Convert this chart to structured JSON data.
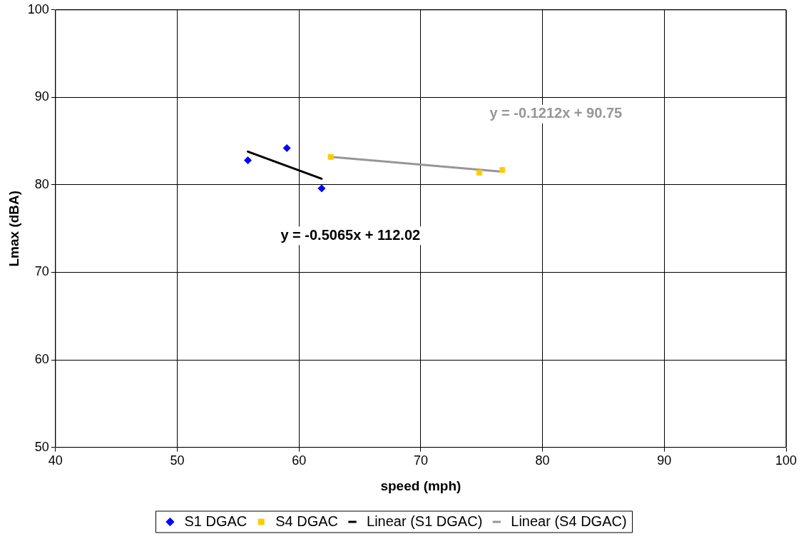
{
  "chart_data": {
    "type": "scatter",
    "xlabel": "speed (mph)",
    "ylabel": "Lmax (dBA)",
    "xlim": [
      40,
      100
    ],
    "xticks": [
      40,
      50,
      60,
      70,
      80,
      90,
      100
    ],
    "ylim": [
      50,
      100
    ],
    "yticks": [
      50,
      60,
      70,
      80,
      90,
      100
    ],
    "grid": true,
    "legend": "bottom",
    "line_style": "solid",
    "series": [
      {
        "name": "S1 DGAC",
        "marker": "diamond",
        "color": "#0000ff",
        "x": [
          55.8,
          59.0,
          61.86
        ],
        "values": [
          82.8,
          84.2,
          79.6
        ]
      },
      {
        "name": "S4 DGAC",
        "marker": "square",
        "color": "#ffcc00",
        "x": [
          62.6,
          74.8,
          76.7
        ],
        "values": [
          83.2,
          81.4,
          81.7
        ]
      },
      {
        "name": "Linear (S1 DGAC)",
        "type": "line",
        "marker": "none",
        "color": "#000000",
        "x": [
          55.8,
          61.86
        ],
        "values": [
          83.8,
          80.7
        ]
      },
      {
        "name": "Linear (S4 DGAC)",
        "type": "line",
        "marker": "none",
        "color": "#969696",
        "x": [
          62.6,
          76.7
        ],
        "values": [
          83.2,
          81.5
        ]
      }
    ],
    "annotations": [
      "y = -0.5065x + 112.02",
      "y = -0.1212x + 90.75"
    ]
  }
}
